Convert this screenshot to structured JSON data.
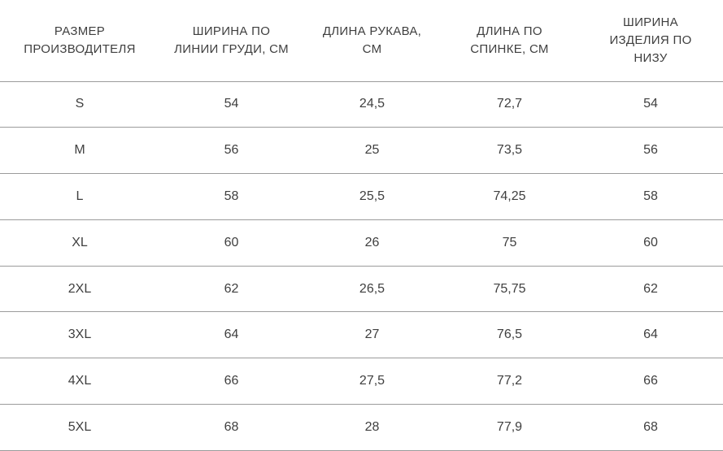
{
  "colors": {
    "border-color": "#9b9b9b",
    "text-color": "#3f3f3f",
    "bg-color": "#ffffff"
  },
  "table": {
    "headers": [
      "РАЗМЕР ПРОИЗВОДИТЕЛЯ",
      "ШИРИНА ПО ЛИНИИ ГРУДИ, СМ",
      "ДЛИНА РУКАВА, СМ",
      "ДЛИНА ПО СПИНКЕ, СМ",
      "ШИРИНА ИЗДЕЛИЯ ПО НИЗУ"
    ],
    "rows": [
      [
        "S",
        "54",
        "24,5",
        "72,7",
        "54"
      ],
      [
        "M",
        "56",
        "25",
        "73,5",
        "56"
      ],
      [
        "L",
        "58",
        "25,5",
        "74,25",
        "58"
      ],
      [
        "XL",
        "60",
        "26",
        "75",
        "60"
      ],
      [
        "2XL",
        "62",
        "26,5",
        "75,75",
        "62"
      ],
      [
        "3XL",
        "64",
        "27",
        "76,5",
        "64"
      ],
      [
        "4XL",
        "66",
        "27,5",
        "77,2",
        "66"
      ],
      [
        "5XL",
        "68",
        "28",
        "77,9",
        "68"
      ]
    ]
  },
  "chart_data": {
    "type": "table",
    "title": "",
    "columns": [
      "РАЗМЕР ПРОИЗВОДИТЕЛЯ",
      "ШИРИНА ПО ЛИНИИ ГРУДИ, СМ",
      "ДЛИНА РУКАВА, СМ",
      "ДЛИНА ПО СПИНКЕ, СМ",
      "ШИРИНА ИЗДЕЛИЯ ПО НИЗУ"
    ],
    "rows": [
      [
        "S",
        54,
        24.5,
        72.7,
        54
      ],
      [
        "M",
        56,
        25,
        73.5,
        56
      ],
      [
        "L",
        58,
        25.5,
        74.25,
        58
      ],
      [
        "XL",
        60,
        26,
        75,
        60
      ],
      [
        "2XL",
        62,
        26.5,
        75.75,
        62
      ],
      [
        "3XL",
        64,
        27,
        76.5,
        64
      ],
      [
        "4XL",
        66,
        27.5,
        77.2,
        66
      ],
      [
        "5XL",
        68,
        28,
        77.9,
        68
      ]
    ]
  }
}
